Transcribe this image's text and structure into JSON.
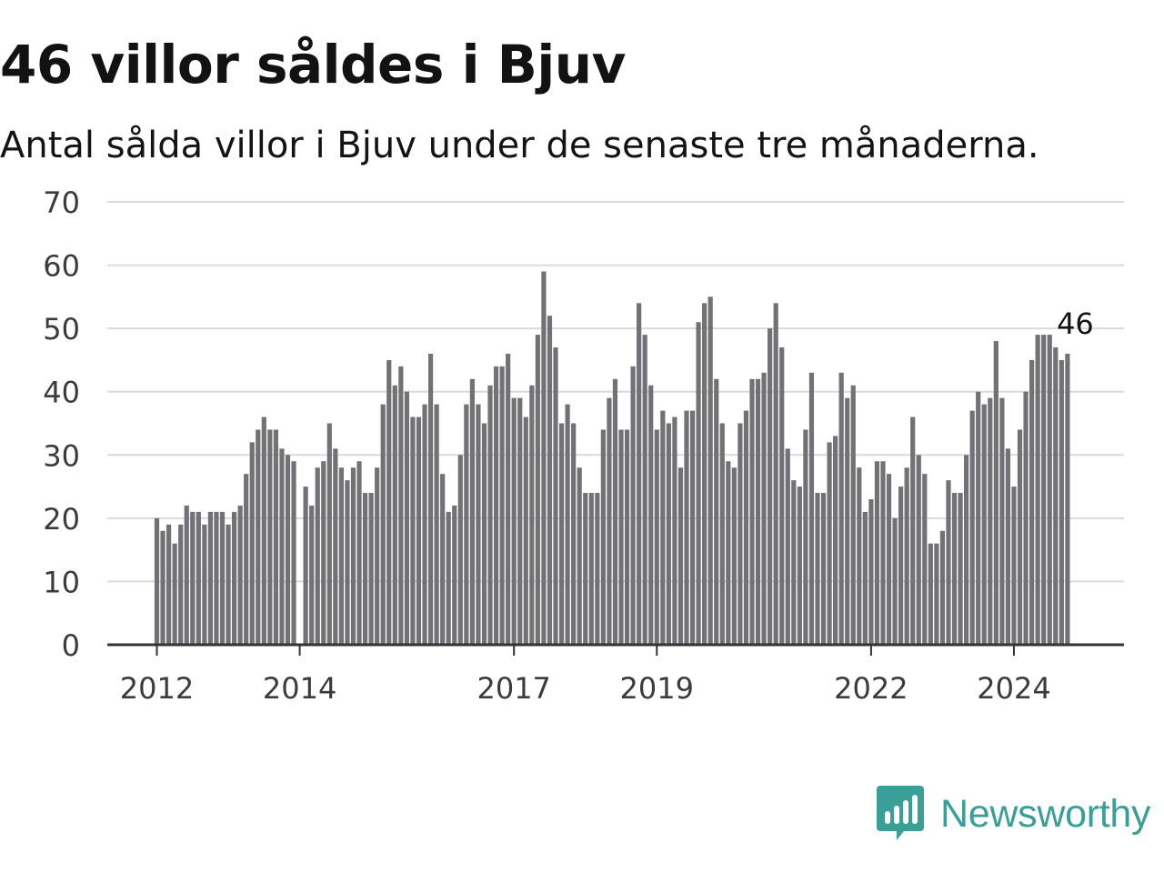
{
  "title": "46 villor såldes i Bjuv",
  "subtitle": "Antal sålda villor i Bjuv under de senaste tre månaderna.",
  "brand": {
    "name": "Newsworthy",
    "color": "#3aa097",
    "icon": "newsworthy-chart-bubble-icon"
  },
  "colors": {
    "bar": "#727175",
    "highlight": "#1fa596",
    "grid": "#dadada",
    "axis": "#333333"
  },
  "chart_data": {
    "type": "bar",
    "title": "46 villor såldes i Bjuv",
    "subtitle": "Antal sålda villor i Bjuv under de senaste tre månaderna.",
    "xlabel": "",
    "ylabel": "",
    "ylim": [
      0,
      70
    ],
    "yticks": [
      0,
      10,
      20,
      30,
      40,
      50,
      60,
      70
    ],
    "grid": true,
    "x_unit": "month",
    "x_start": "2012-01",
    "x_end": "2024-11",
    "xticks": [
      {
        "label": "2012",
        "month": "2012-01"
      },
      {
        "label": "2014",
        "month": "2014-01"
      },
      {
        "label": "2017",
        "month": "2017-01"
      },
      {
        "label": "2019",
        "month": "2019-01"
      },
      {
        "label": "2022",
        "month": "2022-01"
      },
      {
        "label": "2024",
        "month": "2024-01"
      }
    ],
    "highlight": {
      "month": "2024-11",
      "value": 46,
      "label": "46"
    },
    "values": [
      20,
      18,
      19,
      16,
      19,
      22,
      21,
      21,
      19,
      21,
      21,
      21,
      19,
      21,
      22,
      27,
      32,
      34,
      36,
      34,
      34,
      31,
      30,
      29,
      0,
      25,
      22,
      28,
      29,
      35,
      31,
      28,
      26,
      28,
      29,
      24,
      24,
      28,
      38,
      45,
      41,
      44,
      40,
      36,
      36,
      38,
      46,
      38,
      27,
      21,
      22,
      30,
      38,
      42,
      38,
      35,
      41,
      44,
      44,
      46,
      39,
      39,
      36,
      41,
      49,
      59,
      52,
      47,
      35,
      38,
      35,
      28,
      24,
      24,
      24,
      34,
      39,
      42,
      34,
      34,
      44,
      54,
      49,
      41,
      34,
      37,
      35,
      36,
      28,
      37,
      37,
      51,
      54,
      55,
      42,
      35,
      29,
      28,
      35,
      37,
      42,
      42,
      43,
      50,
      54,
      47,
      31,
      26,
      25,
      34,
      43,
      24,
      24,
      32,
      33,
      43,
      39,
      41,
      28,
      21,
      23,
      29,
      29,
      27,
      20,
      25,
      28,
      36,
      30,
      27,
      16,
      16,
      18,
      26,
      24,
      24,
      30,
      37,
      40,
      38,
      39,
      48,
      39,
      31,
      25,
      34,
      40,
      45,
      49,
      49,
      49,
      47,
      45,
      46
    ]
  }
}
